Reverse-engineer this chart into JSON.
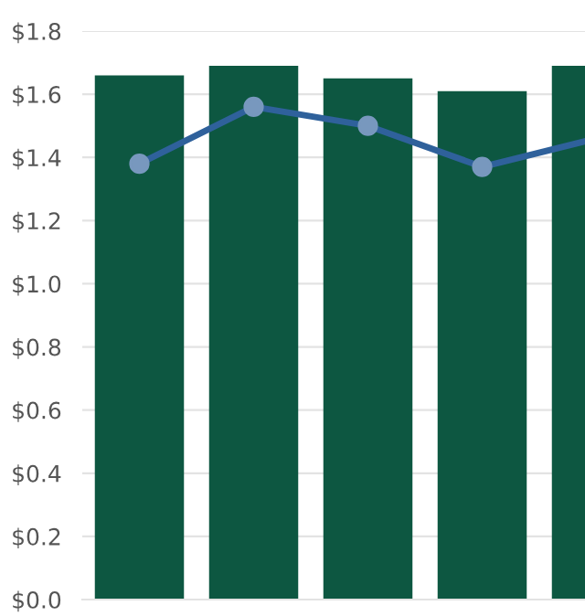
{
  "chart_data": {
    "type": "bar",
    "categories": [
      null,
      null,
      null,
      null,
      null
    ],
    "series": [
      {
        "color": "#0d5741",
        "values": [
          1.66,
          1.69,
          1.65,
          1.61,
          1.69
        ]
      },
      {
        "type": "line",
        "color": "#2f619b",
        "marker": "circle",
        "values": [
          1.38,
          1.56,
          1.5,
          1.37,
          1.46
        ]
      }
    ],
    "ylim": [
      0,
      1.8
    ],
    "yticks": [
      {
        "value": 0,
        "label": "$0.0"
      },
      {
        "value": 0.2,
        "label": "$0.2"
      },
      {
        "value": 0.4,
        "label": "$0.4"
      },
      {
        "value": 0.6,
        "label": "$0.6"
      },
      {
        "value": 0.8,
        "label": "$0.8"
      },
      {
        "value": 1.0,
        "label": "$1.0"
      },
      {
        "value": 1.2,
        "label": "$1.2"
      },
      {
        "value": 1.4,
        "label": "$1.4"
      },
      {
        "value": 1.6,
        "label": "$1.6"
      },
      {
        "value": 1.8,
        "label": "$1.8"
      }
    ],
    "grid": "y"
  }
}
